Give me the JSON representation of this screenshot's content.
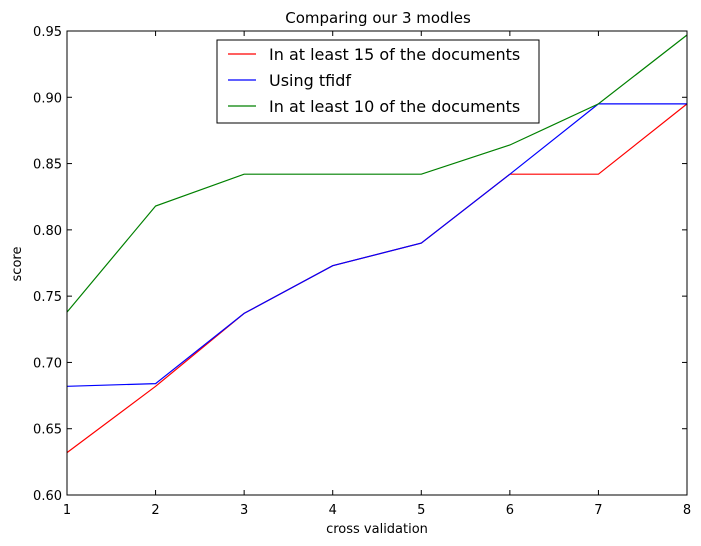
{
  "chart_data": {
    "type": "line",
    "title": "Comparing our 3 modles",
    "xlabel": "cross validation",
    "ylabel": "score",
    "x": [
      1,
      2,
      3,
      4,
      5,
      6,
      7,
      8
    ],
    "xlim": [
      1,
      8
    ],
    "ylim": [
      0.6,
      0.95
    ],
    "xticks": [
      "1",
      "2",
      "3",
      "4",
      "5",
      "6",
      "7",
      "8"
    ],
    "yticks": [
      "0.60",
      "0.65",
      "0.70",
      "0.75",
      "0.80",
      "0.85",
      "0.90",
      "0.95"
    ],
    "grid": false,
    "legend_position": "top-center",
    "series": [
      {
        "name": "In at least 15 of the documents",
        "color": "#ff0000",
        "values": [
          0.632,
          0.682,
          0.737,
          0.773,
          0.79,
          0.842,
          0.842,
          0.895
        ]
      },
      {
        "name": "Using tfidf",
        "color": "#0000ff",
        "values": [
          0.682,
          0.684,
          0.737,
          0.773,
          0.79,
          0.842,
          0.895,
          0.895
        ]
      },
      {
        "name": "In at least 10 of the documents",
        "color": "#008000",
        "values": [
          0.738,
          0.818,
          0.842,
          0.842,
          0.842,
          0.864,
          0.895,
          0.947
        ]
      }
    ]
  }
}
